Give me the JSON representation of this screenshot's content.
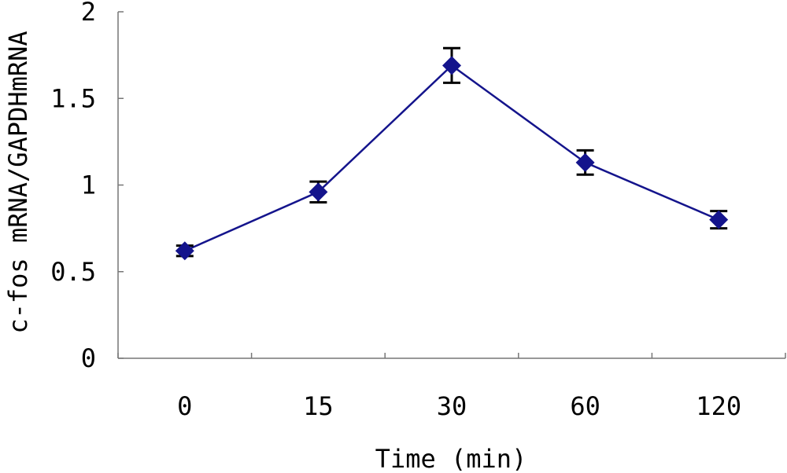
{
  "chart_data": {
    "type": "line",
    "title": "",
    "xlabel": "Time (min)",
    "ylabel": "c-fos mRNA/GAPDHmRNA",
    "categories": [
      "0",
      "15",
      "30",
      "60",
      "120"
    ],
    "ylim": [
      0,
      2
    ],
    "yticks": [
      "0",
      "0.5",
      "1",
      "1.5",
      "2"
    ],
    "grid": false,
    "legend": "none",
    "series": [
      {
        "values": [
          0.62,
          0.96,
          1.69,
          1.13,
          0.8
        ],
        "error": [
          0.03,
          0.06,
          0.1,
          0.07,
          0.05
        ],
        "color": "#14148c",
        "marker": "diamond"
      }
    ]
  }
}
